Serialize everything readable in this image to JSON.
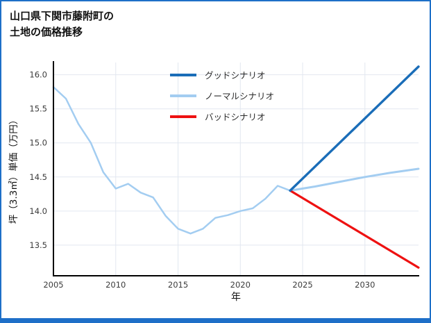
{
  "chart_data": {
    "type": "line",
    "title": "山口県下関市藤附町の土地の価格推移",
    "title_lines": [
      "山口県下関市藤附町の",
      "土地の価格推移"
    ],
    "xlabel": "年",
    "ylabel": "坪（3.3㎡）単価（万円）",
    "xlim": [
      2005,
      2034.3
    ],
    "ylim": [
      13.05,
      16.18
    ],
    "x_ticks": [
      2005,
      2010,
      2015,
      2020,
      2025,
      2030
    ],
    "y_ticks": [
      13.5,
      14.0,
      14.5,
      15.0,
      15.5,
      16.0
    ],
    "grid": true,
    "legend_position": "top-center-inside",
    "legend": [
      {
        "id": "good",
        "label": "グッドシナリオ",
        "color": "#1a6db8"
      },
      {
        "id": "normal",
        "label": "ノーマルシナリオ",
        "color": "#a3cdf1"
      },
      {
        "id": "bad",
        "label": "バッドシナリオ",
        "color": "#ee1111"
      }
    ],
    "series": [
      {
        "id": "historical",
        "name": "historical",
        "color": "#a3cdf1",
        "width": 2.5,
        "x": [
          2005,
          2006,
          2007,
          2008,
          2009,
          2010,
          2011,
          2012,
          2013,
          2014,
          2015,
          2016,
          2017,
          2018,
          2019,
          2020,
          2021,
          2022,
          2023,
          2024
        ],
        "values": [
          15.82,
          15.65,
          15.28,
          15.0,
          14.57,
          14.33,
          14.4,
          14.27,
          14.2,
          13.93,
          13.74,
          13.67,
          13.74,
          13.9,
          13.94,
          14.0,
          14.04,
          14.18,
          14.37,
          14.3
        ]
      },
      {
        "id": "normal",
        "name": "ノーマルシナリオ",
        "color": "#a3cdf1",
        "width": 3,
        "x": [
          2024,
          2026,
          2028,
          2030,
          2032,
          2034.3
        ],
        "values": [
          14.3,
          14.36,
          14.43,
          14.5,
          14.56,
          14.62
        ]
      },
      {
        "id": "bad",
        "name": "バッドシナリオ",
        "color": "#ee1111",
        "width": 3.2,
        "x": [
          2024,
          2034.3
        ],
        "values": [
          14.3,
          13.17
        ]
      },
      {
        "id": "good",
        "name": "グッドシナリオ",
        "color": "#1a6db8",
        "width": 3.4,
        "x": [
          2024,
          2034.3
        ],
        "values": [
          14.3,
          16.12
        ]
      }
    ]
  },
  "colors": {
    "frame": "#1e6fc8",
    "grid": "#e2e7f0",
    "axis": "#000000",
    "tick_text": "#3b3b3b",
    "title_text": "#111111"
  }
}
